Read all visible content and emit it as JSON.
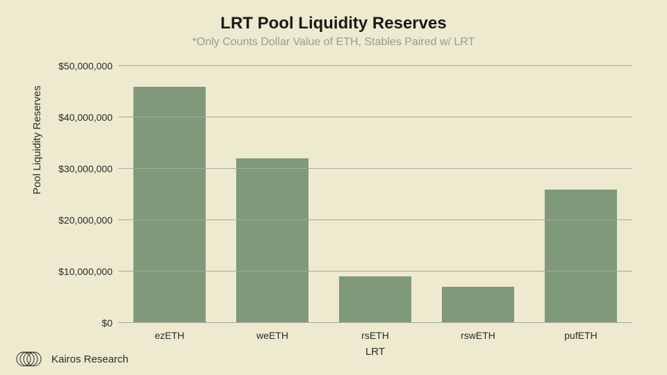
{
  "chart": {
    "type": "bar",
    "title": "LRT Pool Liquidity Reserves",
    "subtitle": "*Only Counts Dollar Value of ETH, Stables Paired w/ LRT",
    "title_fontsize": 24,
    "title_color": "#1a1a1a",
    "subtitle_fontsize": 16,
    "subtitle_color": "#9a9a93",
    "background_color": "#eeeacf",
    "plot_background_color": "#eeeacf",
    "grid_color": "#a8a79c",
    "axis_line_color": "#6a6a62",
    "bar_color": "#7f997a",
    "bar_width": 0.7,
    "xlabel": "LRT",
    "ylabel": "Pool Liquidity Reserves",
    "label_fontsize": 15,
    "label_color": "#2a2a2a",
    "tick_fontsize": 14,
    "tick_color": "#2a2a2a",
    "categories": [
      "ezETH",
      "weETH",
      "rsETH",
      "rswETH",
      "pufETH"
    ],
    "values": [
      46000000,
      32000000,
      9000000,
      7000000,
      26000000
    ],
    "ylim": [
      0,
      50000000
    ],
    "ytick_step": 10000000,
    "ytick_labels": [
      "$0",
      "$10,000,000",
      "$20,000,000",
      "$30,000,000",
      "$40,000,000",
      "$50,000,000"
    ]
  },
  "footer": {
    "brand": "Kairos Research",
    "brand_fontsize": 15,
    "brand_color": "#2a2a2a",
    "logo_stroke": "#2a2a2a"
  }
}
